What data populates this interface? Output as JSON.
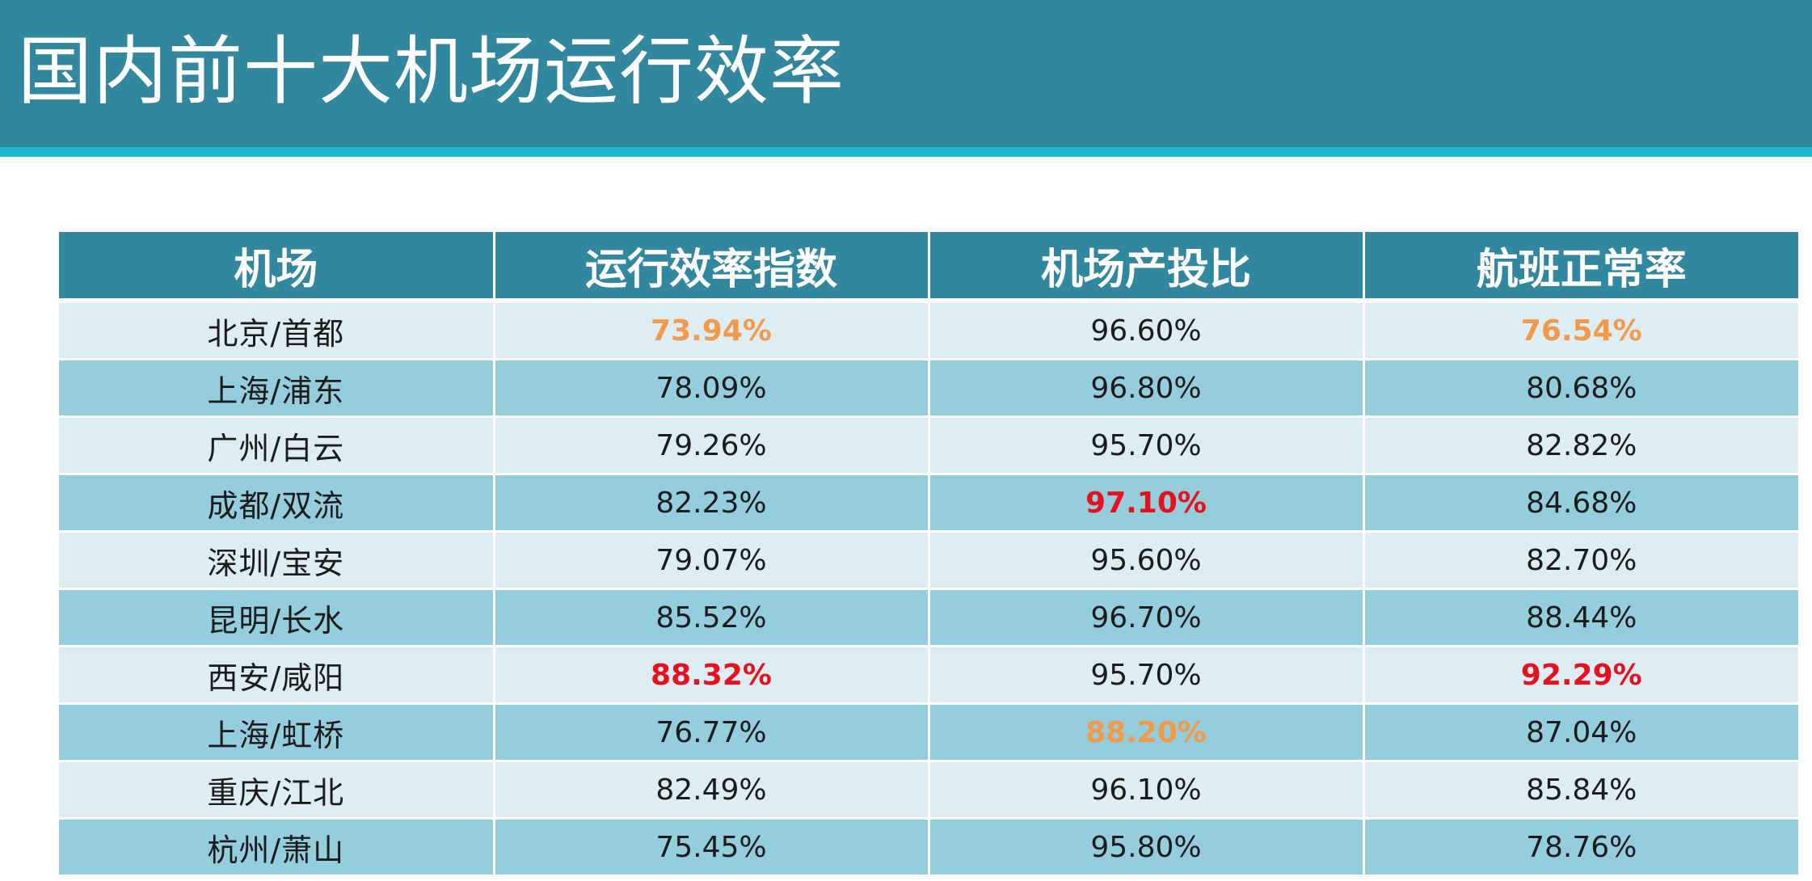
{
  "title": "国内前十大机场运行效率",
  "colors": {
    "header_bg": "#31879e",
    "accent": "#22b6d0",
    "row_light": "#dcedf4",
    "row_dark": "#94cedd",
    "highlight_red": "#e8101d",
    "highlight_orange": "#f2994a"
  },
  "table": {
    "headers": [
      "机场",
      "运行效率指数",
      "机场产投比",
      "航班正常率"
    ],
    "rows": [
      {
        "airport": "北京/首都",
        "efficiency": "73.94%",
        "ratio": "96.60%",
        "ontime": "76.54%",
        "highlight": {
          "efficiency": "orange",
          "ratio": "",
          "ontime": "orange"
        }
      },
      {
        "airport": "上海/浦东",
        "efficiency": "78.09%",
        "ratio": "96.80%",
        "ontime": "80.68%",
        "highlight": {
          "efficiency": "",
          "ratio": "",
          "ontime": ""
        }
      },
      {
        "airport": "广州/白云",
        "efficiency": "79.26%",
        "ratio": "95.70%",
        "ontime": "82.82%",
        "highlight": {
          "efficiency": "",
          "ratio": "",
          "ontime": ""
        }
      },
      {
        "airport": "成都/双流",
        "efficiency": "82.23%",
        "ratio": "97.10%",
        "ontime": "84.68%",
        "highlight": {
          "efficiency": "",
          "ratio": "red",
          "ontime": ""
        }
      },
      {
        "airport": "深圳/宝安",
        "efficiency": "79.07%",
        "ratio": "95.60%",
        "ontime": "82.70%",
        "highlight": {
          "efficiency": "",
          "ratio": "",
          "ontime": ""
        }
      },
      {
        "airport": "昆明/长水",
        "efficiency": "85.52%",
        "ratio": "96.70%",
        "ontime": "88.44%",
        "highlight": {
          "efficiency": "",
          "ratio": "",
          "ontime": ""
        }
      },
      {
        "airport": "西安/咸阳",
        "efficiency": "88.32%",
        "ratio": "95.70%",
        "ontime": "92.29%",
        "highlight": {
          "efficiency": "red",
          "ratio": "",
          "ontime": "red"
        }
      },
      {
        "airport": "上海/虹桥",
        "efficiency": "76.77%",
        "ratio": "88.20%",
        "ontime": "87.04%",
        "highlight": {
          "efficiency": "",
          "ratio": "orange",
          "ontime": ""
        }
      },
      {
        "airport": "重庆/江北",
        "efficiency": "82.49%",
        "ratio": "96.10%",
        "ontime": "85.84%",
        "highlight": {
          "efficiency": "",
          "ratio": "",
          "ontime": ""
        }
      },
      {
        "airport": "杭州/萧山",
        "efficiency": "75.45%",
        "ratio": "95.80%",
        "ontime": "78.76%",
        "highlight": {
          "efficiency": "",
          "ratio": "",
          "ontime": ""
        }
      }
    ]
  }
}
